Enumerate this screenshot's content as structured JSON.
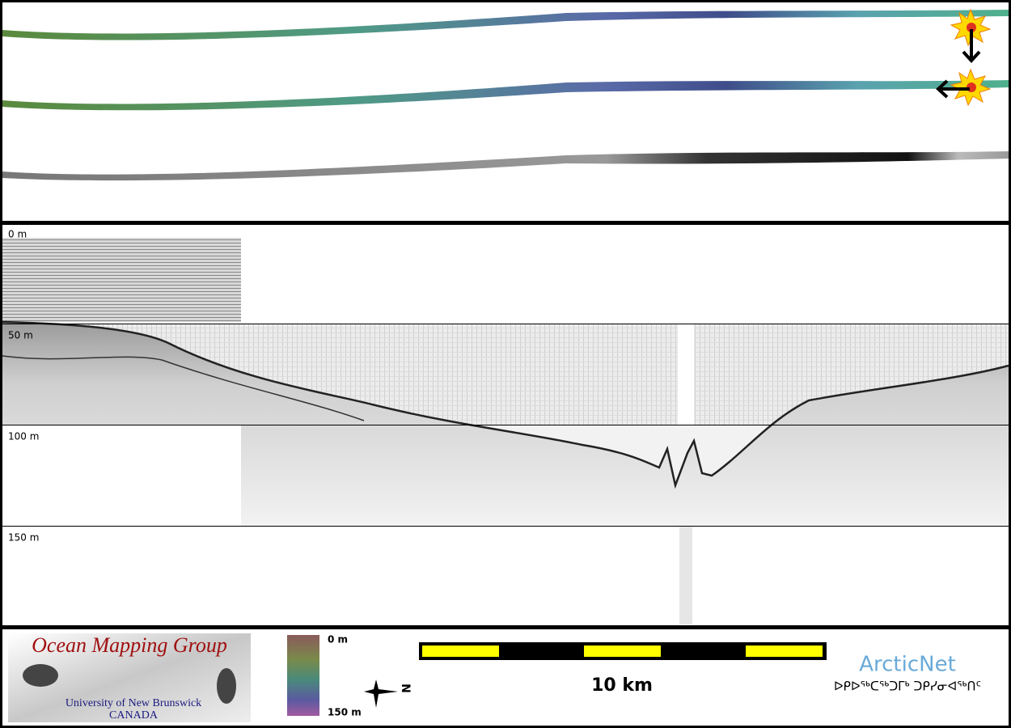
{
  "profile": {
    "depth_labels": [
      "0 m",
      "50 m",
      "100 m",
      "150 m"
    ]
  },
  "footer": {
    "logo": {
      "title": "Ocean Mapping Group",
      "university": "University of New Brunswick",
      "country": "CANADA"
    },
    "colorbar": {
      "top_label": "0 m",
      "bottom_label": "150 m"
    },
    "compass": "N",
    "scale_bar": "10 km",
    "partner": {
      "name": "ArcticNet",
      "subtitle": "ᐅᑭᐅᖅᑕᖅᑐᒥᒃ ᑐᑭᓯᓂᐊᖅᑎᑦ"
    }
  }
}
